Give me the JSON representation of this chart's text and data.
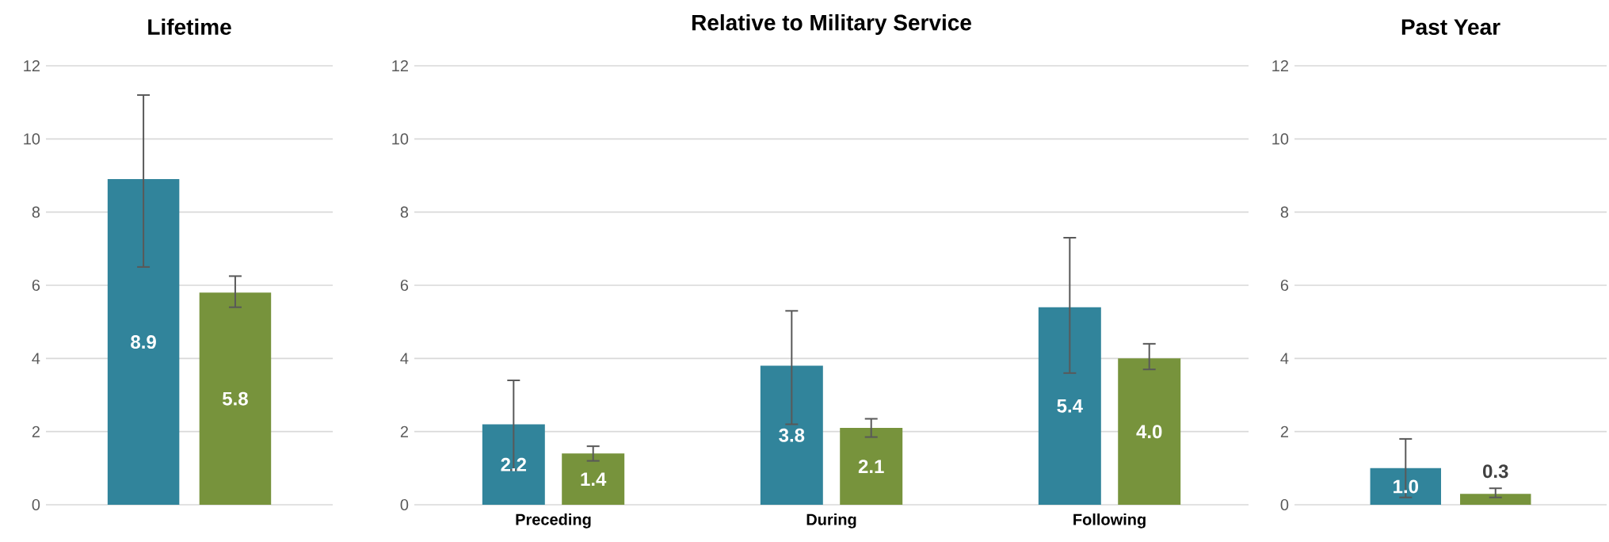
{
  "chart_data": [
    {
      "type": "bar",
      "title": "Lifetime",
      "categories": [
        null
      ],
      "ylim": [
        0,
        12
      ],
      "yticks": [
        0,
        2,
        4,
        6,
        8,
        10,
        12
      ],
      "grid": "y",
      "series": [
        {
          "color": "#31849b",
          "values": [
            8.9
          ],
          "value_labels": [
            "8.9"
          ],
          "errors": [
            [
              6.5,
              11.2
            ]
          ]
        },
        {
          "color": "#77933c",
          "values": [
            5.8
          ],
          "value_labels": [
            "5.8"
          ],
          "errors": [
            [
              5.4,
              6.25
            ]
          ]
        }
      ]
    },
    {
      "type": "bar",
      "title": "Relative to Military Service",
      "categories": [
        "Preceding",
        "During",
        "Following"
      ],
      "ylim": [
        0,
        12
      ],
      "yticks": [
        0,
        2,
        4,
        6,
        8,
        10,
        12
      ],
      "grid": "y",
      "series": [
        {
          "color": "#31849b",
          "values": [
            2.2,
            3.8,
            5.4
          ],
          "value_labels": [
            "2.2",
            "3.8",
            "5.4"
          ],
          "errors": [
            [
              0.95,
              3.4
            ],
            [
              2.2,
              5.3
            ],
            [
              3.6,
              7.3
            ]
          ]
        },
        {
          "color": "#77933c",
          "values": [
            1.4,
            2.1,
            4.0
          ],
          "value_labels": [
            "1.4",
            "2.1",
            "4.0"
          ],
          "errors": [
            [
              1.2,
              1.6
            ],
            [
              1.85,
              2.35
            ],
            [
              3.7,
              4.4
            ]
          ]
        }
      ]
    },
    {
      "type": "bar",
      "title": "Past Year",
      "categories": [
        null
      ],
      "ylim": [
        0,
        12
      ],
      "yticks": [
        0,
        2,
        4,
        6,
        8,
        10,
        12
      ],
      "grid": "y",
      "series": [
        {
          "color": "#31849b",
          "values": [
            1.0
          ],
          "value_labels": [
            "1.0"
          ],
          "errors": [
            [
              0.2,
              1.8
            ]
          ]
        },
        {
          "color": "#77933c",
          "values": [
            0.3
          ],
          "value_labels": [
            "0.3"
          ],
          "errors": [
            [
              0.2,
              0.45
            ]
          ]
        }
      ]
    }
  ]
}
